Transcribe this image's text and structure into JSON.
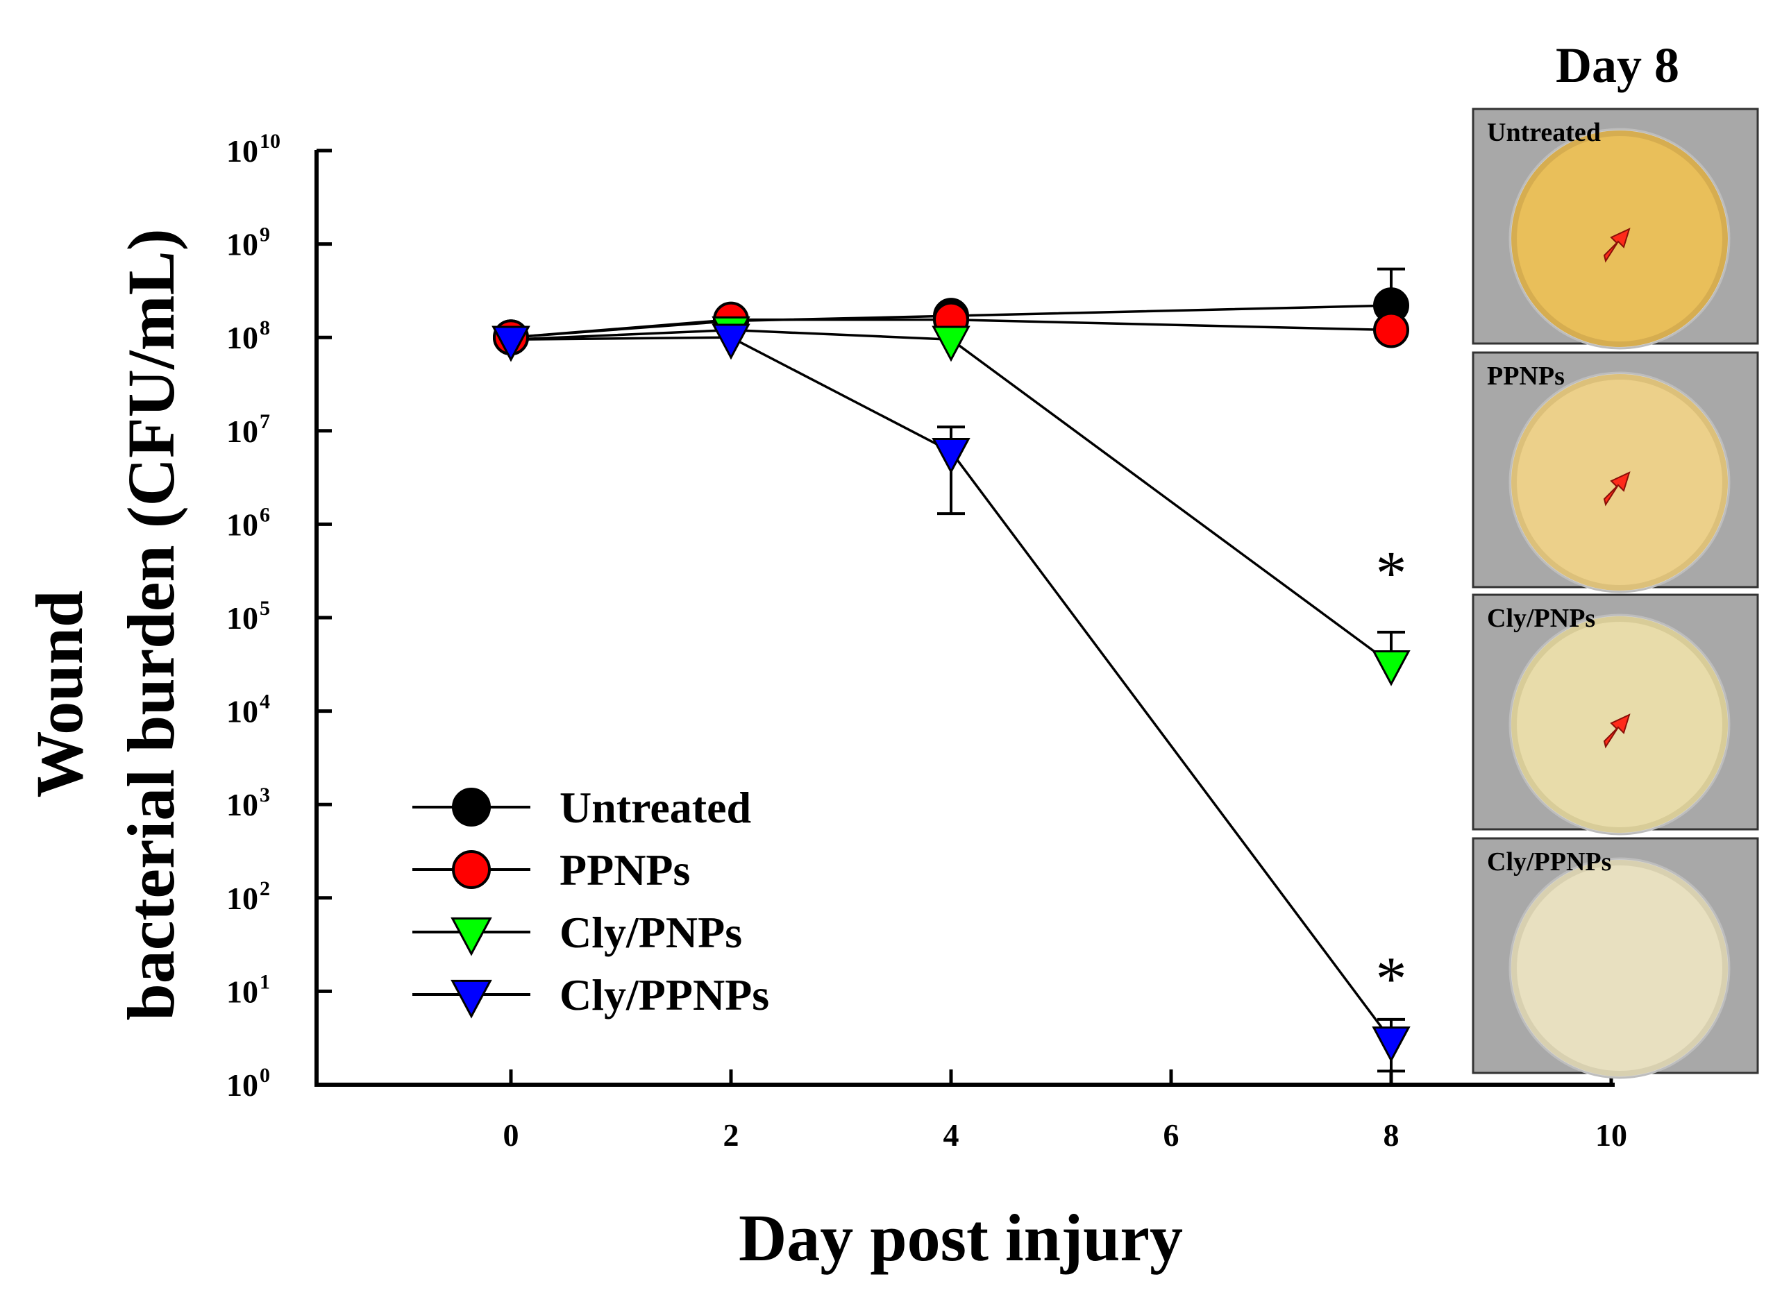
{
  "chart_data": {
    "type": "line",
    "title": "",
    "xlabel": "Day post injury",
    "ylabel_line1": "Wound",
    "ylabel_line2": "bacterial burden (CFU/mL)",
    "yscale": "log10",
    "xlim": [
      -2,
      10
    ],
    "ylim_exponent": [
      0,
      10
    ],
    "x_ticks": [
      0,
      2,
      4,
      6,
      8,
      10
    ],
    "y_ticks": [
      {
        "base": "10",
        "exp": "0"
      },
      {
        "base": "10",
        "exp": "1"
      },
      {
        "base": "10",
        "exp": "2"
      },
      {
        "base": "10",
        "exp": "3"
      },
      {
        "base": "10",
        "exp": "4"
      },
      {
        "base": "10",
        "exp": "5"
      },
      {
        "base": "10",
        "exp": "6"
      },
      {
        "base": "10",
        "exp": "7"
      },
      {
        "base": "10",
        "exp": "8"
      },
      {
        "base": "10",
        "exp": "9"
      },
      {
        "base": "10",
        "exp": "10"
      }
    ],
    "grid": false,
    "legend_position": "bottom-left",
    "series": [
      {
        "name": "Untreated",
        "marker": "circle",
        "color": "#000000",
        "x": [
          0,
          2,
          4,
          8
        ],
        "y": [
          100000000,
          150000000,
          170000000,
          220000000
        ],
        "err_upper": [
          null,
          null,
          null,
          540000000
        ]
      },
      {
        "name": "PPNPs",
        "marker": "circle",
        "color": "#ff0000",
        "x": [
          0,
          2,
          4,
          8
        ],
        "y": [
          100000000,
          155000000,
          155000000,
          120000000
        ],
        "err_upper": [
          null,
          null,
          null,
          null
        ]
      },
      {
        "name": "Cly/PNPs",
        "marker": "triangle-down",
        "color": "#00ff00",
        "x": [
          0,
          2,
          4,
          8
        ],
        "y": [
          95000000,
          120000000,
          95000000,
          32000
        ],
        "err_upper": [
          null,
          null,
          null,
          70000
        ]
      },
      {
        "name": "Cly/PPNPs",
        "marker": "triangle-down",
        "color": "#0000ff",
        "x": [
          0,
          2,
          4,
          8
        ],
        "y": [
          95000000,
          100000000,
          6000000,
          3
        ],
        "err_upper": [
          null,
          null,
          11000000,
          5
        ],
        "err_lower": [
          null,
          null,
          1300000,
          1.4
        ]
      }
    ],
    "annotations": [
      {
        "text": "*",
        "x": 8,
        "y": 330000
      },
      {
        "text": "*",
        "x": 8,
        "y": 15
      }
    ]
  },
  "plates": {
    "heading": "Day 8",
    "items": [
      {
        "label": "Untreated",
        "agar_color": "#e9bf5a",
        "rim_color": "#d6ad50",
        "has_arrow": true
      },
      {
        "label": "PPNPs",
        "agar_color": "#ecd08a",
        "rim_color": "#dcc07a",
        "has_arrow": true
      },
      {
        "label": "Cly/PNPs",
        "agar_color": "#e8dcaa",
        "rim_color": "#d8cc98",
        "has_arrow": true
      },
      {
        "label": "Cly/PPNPs",
        "agar_color": "#e8e0c0",
        "rim_color": "#d8d0b0",
        "has_arrow": false
      }
    ],
    "arrow_color": "#ff2a1a",
    "panel_bg": "#a8a8a8"
  }
}
